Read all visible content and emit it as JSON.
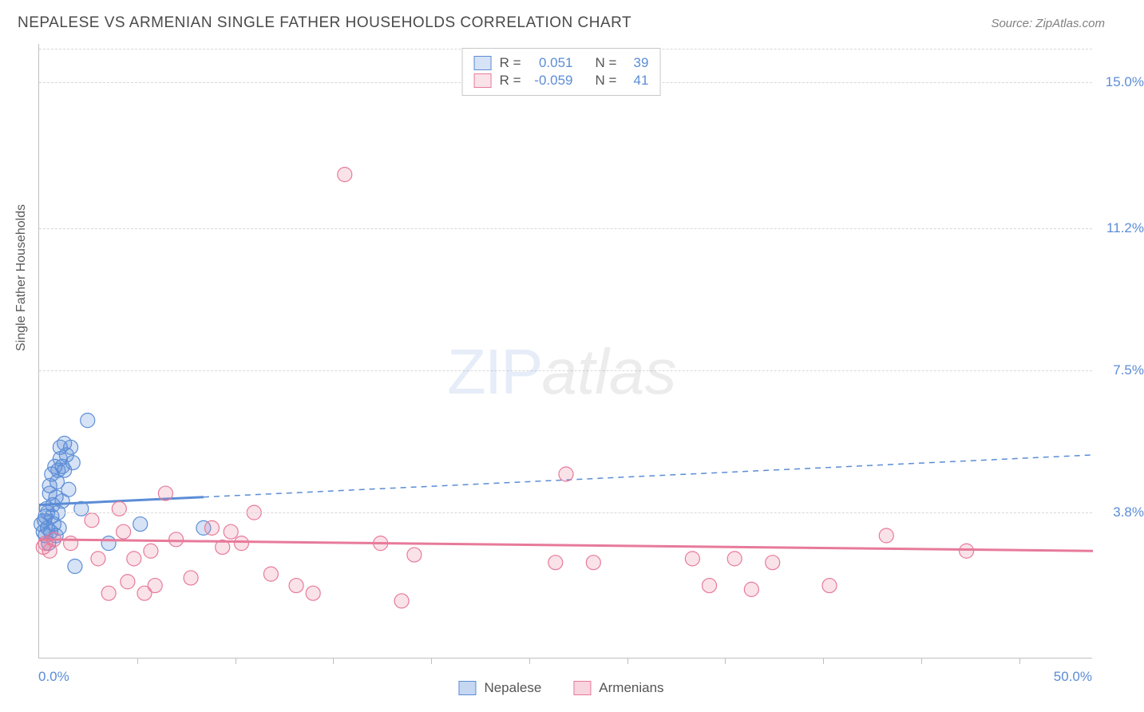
{
  "title": "NEPALESE VS ARMENIAN SINGLE FATHER HOUSEHOLDS CORRELATION CHART",
  "source": "Source: ZipAtlas.com",
  "y_axis_label": "Single Father Households",
  "x_start": "0.0%",
  "x_end": "50.0%",
  "watermark_zip": "ZIP",
  "watermark_atlas": "atlas",
  "chart": {
    "type": "scatter",
    "xlim": [
      0,
      50
    ],
    "ylim": [
      0,
      16
    ],
    "y_gridlines": [
      {
        "value": 15.88,
        "label": ""
      },
      {
        "value": 15.0,
        "label": "15.0%"
      },
      {
        "value": 11.2,
        "label": "11.2%"
      },
      {
        "value": 7.5,
        "label": "7.5%"
      },
      {
        "value": 3.8,
        "label": "3.8%"
      }
    ],
    "x_tick_positions": [
      4.65,
      9.3,
      13.95,
      18.6,
      23.25,
      27.9,
      32.55,
      37.2,
      41.85,
      46.5
    ],
    "background_color": "#ffffff",
    "grid_color": "#d8d8d8",
    "axis_color": "#c0c0c0",
    "label_color": "#5b8dd6",
    "marker_radius": 9,
    "marker_stroke_width": 1.2,
    "marker_fill_opacity": 0.25,
    "regression_line_width": 3,
    "regression_dash": "7 6",
    "series": [
      {
        "name": "Nepalese",
        "color": "#5b8dd6",
        "fill": "rgba(91,141,214,0.25)",
        "R": "0.051",
        "N": "39",
        "regression": {
          "x1": 0,
          "y1": 4.0,
          "x2": 50,
          "y2": 5.3,
          "solid_until_x": 7.8
        },
        "points": [
          [
            0.1,
            3.5
          ],
          [
            0.2,
            3.3
          ],
          [
            0.25,
            3.6
          ],
          [
            0.3,
            3.2
          ],
          [
            0.3,
            3.7
          ],
          [
            0.35,
            3.9
          ],
          [
            0.4,
            3.4
          ],
          [
            0.4,
            3.8
          ],
          [
            0.45,
            3.0
          ],
          [
            0.5,
            4.3
          ],
          [
            0.5,
            4.5
          ],
          [
            0.55,
            3.3
          ],
          [
            0.6,
            3.7
          ],
          [
            0.6,
            4.8
          ],
          [
            0.65,
            4.0
          ],
          [
            0.7,
            3.5
          ],
          [
            0.75,
            5.0
          ],
          [
            0.8,
            3.2
          ],
          [
            0.8,
            4.2
          ],
          [
            0.85,
            4.6
          ],
          [
            0.9,
            3.8
          ],
          [
            0.95,
            3.4
          ],
          [
            1.0,
            5.2
          ],
          [
            1.0,
            5.5
          ],
          [
            1.1,
            5.0
          ],
          [
            1.2,
            4.9
          ],
          [
            1.2,
            5.6
          ],
          [
            1.3,
            5.3
          ],
          [
            1.5,
            5.5
          ],
          [
            1.6,
            5.1
          ],
          [
            1.7,
            2.4
          ],
          [
            2.0,
            3.9
          ],
          [
            2.3,
            6.2
          ],
          [
            3.3,
            3.0
          ],
          [
            4.8,
            3.5
          ],
          [
            7.8,
            3.4
          ],
          [
            1.4,
            4.4
          ],
          [
            0.9,
            4.9
          ],
          [
            1.1,
            4.1
          ]
        ]
      },
      {
        "name": "Armenians",
        "color": "#e77a9a",
        "fill": "rgba(231,122,154,0.22)",
        "R": "-0.059",
        "N": "41",
        "regression": {
          "x1": 0,
          "y1": 3.1,
          "x2": 50,
          "y2": 2.8,
          "solid_until_x": 50
        },
        "points": [
          [
            0.2,
            2.9
          ],
          [
            0.3,
            3.0
          ],
          [
            0.5,
            2.8
          ],
          [
            0.7,
            3.1
          ],
          [
            1.5,
            3.0
          ],
          [
            2.5,
            3.6
          ],
          [
            2.8,
            2.6
          ],
          [
            3.3,
            1.7
          ],
          [
            3.8,
            3.9
          ],
          [
            4.2,
            2.0
          ],
          [
            4.5,
            2.6
          ],
          [
            5.0,
            1.7
          ],
          [
            5.5,
            1.9
          ],
          [
            6.0,
            4.3
          ],
          [
            6.5,
            3.1
          ],
          [
            7.2,
            2.1
          ],
          [
            8.2,
            3.4
          ],
          [
            8.7,
            2.9
          ],
          [
            9.1,
            3.3
          ],
          [
            9.6,
            3.0
          ],
          [
            10.2,
            3.8
          ],
          [
            11.0,
            2.2
          ],
          [
            12.2,
            1.9
          ],
          [
            13.0,
            1.7
          ],
          [
            14.5,
            12.6
          ],
          [
            16.2,
            3.0
          ],
          [
            17.2,
            1.5
          ],
          [
            17.8,
            2.7
          ],
          [
            24.5,
            2.5
          ],
          [
            25.0,
            4.8
          ],
          [
            26.3,
            2.5
          ],
          [
            31.0,
            2.6
          ],
          [
            31.8,
            1.9
          ],
          [
            33.0,
            2.6
          ],
          [
            33.8,
            1.8
          ],
          [
            34.8,
            2.5
          ],
          [
            37.5,
            1.9
          ],
          [
            40.2,
            3.2
          ],
          [
            44.0,
            2.8
          ],
          [
            4.0,
            3.3
          ],
          [
            5.3,
            2.8
          ]
        ]
      }
    ]
  },
  "stats_labels": {
    "R": "R =",
    "N": "N ="
  },
  "legend": {
    "series1": "Nepalese",
    "series2": "Armenians"
  }
}
